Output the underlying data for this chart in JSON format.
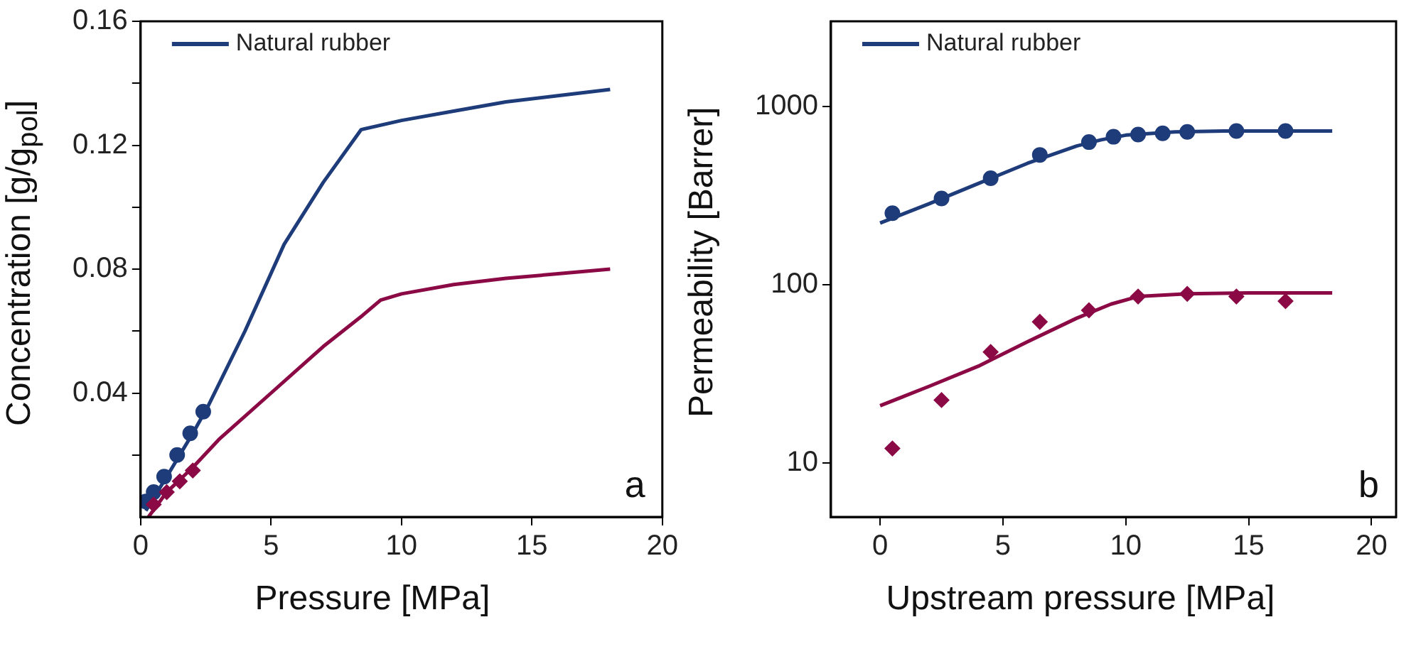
{
  "chart_data": [
    {
      "type": "line",
      "xlabel": "Pressure [MPa]",
      "ylabel": "Concentration [g/g$_{pol}$]",
      "xlim": [
        0,
        20
      ],
      "ylim": [
        0,
        0.16
      ],
      "xticks": [
        0,
        5,
        10,
        15,
        20
      ],
      "yticks": [
        {
          "value": 0.02,
          "label": null
        },
        0.04,
        {
          "value": 0.06,
          "label": null
        },
        0.08,
        {
          "value": 0.1,
          "label": null
        },
        0.12,
        {
          "value": 0.14,
          "label": null
        },
        0.16
      ],
      "grid": false,
      "legend": "top left",
      "annotations": [
        "a"
      ],
      "series": [
        {
          "name": "Natural rubber",
          "type": "line",
          "color": "#1f3c7a",
          "marker": "none",
          "x": [
            0.2,
            1,
            2,
            2.6,
            4,
            5.5,
            7,
            8.45,
            10,
            12,
            14,
            16,
            18
          ],
          "values": [
            0.002,
            0.013,
            0.027,
            0.036,
            0.06,
            0.088,
            0.108,
            0.125,
            0.128,
            0.131,
            0.134,
            0.136,
            0.138
          ]
        },
        {
          "type": "line",
          "color": "#8b0a46",
          "marker": "none",
          "x": [
            0.3,
            1,
            2,
            3,
            5,
            7,
            8.5,
            9.2,
            10,
            12,
            14,
            16,
            18
          ],
          "values": [
            0,
            0.008,
            0.016,
            0.025,
            0.04,
            0.055,
            0.065,
            0.07,
            0.072,
            0.075,
            0.077,
            0.0785,
            0.08
          ]
        },
        {
          "type": "scatter",
          "color": "#1f3c7a",
          "marker": "circle",
          "x": [
            0.2,
            0.5,
            0.9,
            1.4,
            1.9,
            2.4
          ],
          "values": [
            0.005,
            0.008,
            0.013,
            0.02,
            0.027,
            0.034
          ]
        },
        {
          "type": "scatter",
          "color": "#8b0a46",
          "marker": "diamond",
          "x": [
            0.5,
            1,
            1.5,
            2
          ],
          "values": [
            0.004,
            0.008,
            0.0115,
            0.015
          ]
        }
      ]
    },
    {
      "type": "line",
      "xlabel": "Upstream pressure [MPa]",
      "ylabel": "Permeability [Barrer]",
      "xlim": [
        -2,
        21
      ],
      "ylim": [
        5,
        3000
      ],
      "log": "y",
      "xticks": [
        0,
        5,
        10,
        15,
        20
      ],
      "yticks": [
        10,
        100,
        1000
      ],
      "grid": false,
      "legend": "top left",
      "annotations": [
        "b"
      ],
      "series": [
        {
          "name": "Natural rubber",
          "type": "line",
          "color": "#1f3c7a",
          "marker": "none",
          "x": [
            0,
            2,
            4,
            6,
            8,
            9,
            10,
            12,
            14,
            18.4
          ],
          "values": [
            222,
            285,
            370,
            480,
            600,
            650,
            690,
            720,
            728,
            728
          ]
        },
        {
          "type": "line",
          "color": "#8b0a46",
          "marker": "none",
          "x": [
            0,
            2,
            4,
            6,
            8,
            9.4,
            10.5,
            12.5,
            15,
            18.4
          ],
          "values": [
            21,
            27,
            35,
            48,
            65,
            78,
            86,
            89,
            90,
            90
          ]
        },
        {
          "type": "scatter",
          "color": "#1f3c7a",
          "marker": "circle",
          "x": [
            0.5,
            2.5,
            4.5,
            6.5,
            8.5,
            9.5,
            10.5,
            11.5,
            12.5,
            14.5,
            16.5
          ],
          "values": [
            252,
            305,
            396,
            535,
            631,
            676,
            695,
            707,
            720,
            728,
            728
          ]
        },
        {
          "type": "scatter",
          "color": "#8b0a46",
          "marker": "diamond",
          "x": [
            0.5,
            2.5,
            4.5,
            6.5,
            8.5,
            10.5,
            12.5,
            14.5,
            16.5
          ],
          "values": [
            12.1,
            22.6,
            42,
            62,
            72,
            86,
            89,
            86,
            81
          ]
        }
      ]
    }
  ]
}
